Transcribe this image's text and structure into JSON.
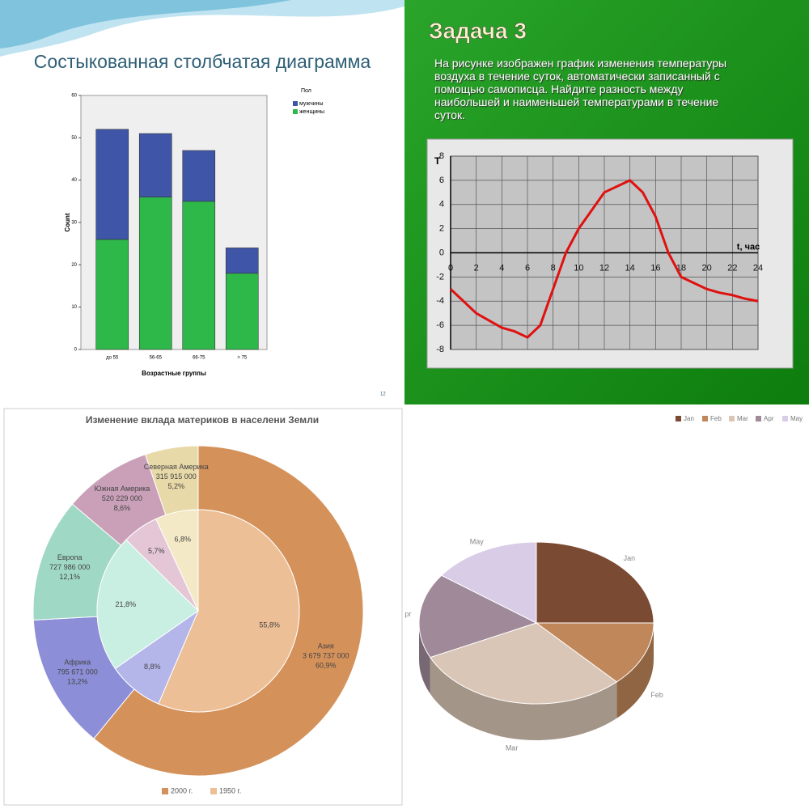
{
  "chart_data": [
    {
      "type": "bar",
      "stacked": true,
      "title": "Состыкованная столбчатая диаграмма",
      "categories": [
        "до 55",
        "56-65",
        "66-75",
        "> 75"
      ],
      "series": [
        {
          "name": "мужчины",
          "color": "#3f56a8",
          "values": [
            26,
            15,
            12,
            6
          ]
        },
        {
          "name": "женщины",
          "color": "#2fb84a",
          "values": [
            26,
            36,
            35,
            18
          ]
        }
      ],
      "legend_title": "Пол",
      "xlabel": "Возрастные группы",
      "ylabel": "Count",
      "ylim": [
        0,
        60
      ],
      "yticks": [
        0,
        10,
        20,
        30,
        40,
        50,
        60
      ],
      "slide_number": "12"
    },
    {
      "type": "line",
      "title": "Задача 3",
      "text": "На рисунке изображен график изменения температуры воздуха в течение суток, автоматически записанный с помощью самописца. Найдите разность между наибольшей и наименьшей температурами в течение суток.",
      "x": [
        0,
        1,
        2,
        3,
        4,
        5,
        6,
        7,
        8,
        9,
        10,
        11,
        12,
        13,
        14,
        15,
        16,
        17,
        18,
        19,
        20,
        21,
        22,
        23,
        24
      ],
      "values": [
        -3,
        -4,
        -5,
        -5.6,
        -6.2,
        -6.5,
        -7,
        -6,
        -3,
        0,
        2,
        3.5,
        5,
        5.5,
        6,
        5,
        3,
        0,
        -2,
        -2.5,
        -3,
        -3.3,
        -3.5,
        -3.8,
        -4
      ],
      "color": "#e01010",
      "xlabel": "t, час",
      "ylabel": "T",
      "xlim": [
        0,
        24
      ],
      "ylim": [
        -8,
        8
      ],
      "xticks": [
        0,
        2,
        4,
        6,
        8,
        10,
        12,
        14,
        16,
        18,
        20,
        22,
        24
      ],
      "yticks": [
        -8,
        -6,
        -4,
        -2,
        0,
        2,
        4,
        6,
        8
      ],
      "grid": true
    },
    {
      "type": "donut",
      "title": "Изменение вклада материков в населени Земли",
      "categories": [
        "Азия",
        "Африка",
        "Европа",
        "Южная Америка",
        "Северная Америка"
      ],
      "series": [
        {
          "name": "2000 г.",
          "colors": [
            "#d4915a",
            "#8c8fd8",
            "#9fd8c4",
            "#c9a0b8",
            "#e8d9a8"
          ],
          "values": [
            60.9,
            13.2,
            12.1,
            8.6,
            5.2
          ],
          "value_labels": [
            "60,9%",
            "13,2%",
            "12,1%",
            "8,6%",
            "5,2%"
          ],
          "population_labels": [
            "3 679 737 000",
            "795 671 000",
            "727 986 000",
            "520 229 000",
            "315 915 000"
          ]
        },
        {
          "name": "1950 г.",
          "colors": [
            "#edbf96",
            "#b4b6ea",
            "#c9eee2",
            "#e4c6d6",
            "#f3e9c6"
          ],
          "values": [
            55.8,
            8.8,
            21.8,
            5.7,
            6.8
          ],
          "value_labels": [
            "55,8%",
            "8,8%",
            "21,8%",
            "5,7%",
            "6,8%"
          ]
        }
      ]
    },
    {
      "type": "pie",
      "categories": [
        "Jan",
        "Feb",
        "Mar",
        "Apr",
        "May"
      ],
      "values": [
        25,
        13,
        30,
        17,
        15
      ],
      "colors": [
        "#7b4a33",
        "#c0875a",
        "#d9c6b6",
        "#a08a9a",
        "#d8cce6"
      ],
      "legend": "top-right"
    }
  ]
}
